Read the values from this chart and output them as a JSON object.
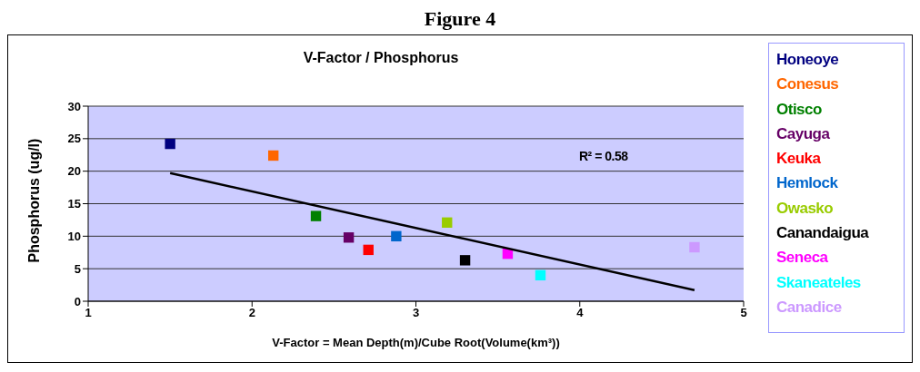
{
  "chart_data": {
    "type": "scatter",
    "title": "Figure 4",
    "subtitle": "V-Factor / Phosphorus",
    "xlabel": "V-Factor = Mean Depth(m)/Cube Root(Volume(km³))",
    "ylabel": "Phosphorus (ug/l)",
    "annotations": [
      "R² = 0.58"
    ],
    "xlim": [
      1,
      5
    ],
    "xticks": [
      1,
      2,
      3,
      4,
      5
    ],
    "ylim": [
      0,
      30
    ],
    "yticks": [
      0,
      5,
      10,
      15,
      20,
      25,
      30
    ],
    "grid": "y",
    "legend": "right",
    "marker": "square",
    "series": [
      {
        "name": "Honeoye",
        "color": "#000080",
        "x": [
          1.5
        ],
        "values": [
          24.2
        ]
      },
      {
        "name": "Conesus",
        "color": "#ff6600",
        "x": [
          2.13
        ],
        "values": [
          22.4
        ]
      },
      {
        "name": "Otisco",
        "color": "#008000",
        "x": [
          2.39
        ],
        "values": [
          13.1
        ]
      },
      {
        "name": "Cayuga",
        "color": "#660066",
        "x": [
          2.59
        ],
        "values": [
          9.8
        ]
      },
      {
        "name": "Keuka",
        "color": "#ff0000",
        "x": [
          2.71
        ],
        "values": [
          7.9
        ]
      },
      {
        "name": "Hemlock",
        "color": "#0066cc",
        "x": [
          2.88
        ],
        "values": [
          10.0
        ]
      },
      {
        "name": "Owasko",
        "color": "#99cc00",
        "x": [
          3.19
        ],
        "values": [
          12.1
        ]
      },
      {
        "name": "Canandaigua",
        "color": "#000000",
        "x": [
          3.3
        ],
        "values": [
          6.3
        ]
      },
      {
        "name": "Seneca",
        "color": "#ff00ff",
        "x": [
          3.56
        ],
        "values": [
          7.3
        ]
      },
      {
        "name": "Skaneateles",
        "color": "#00ffff",
        "x": [
          3.76
        ],
        "values": [
          4.0
        ]
      },
      {
        "name": "Canadice",
        "color": "#cc99ff",
        "x": [
          4.7
        ],
        "values": [
          8.3
        ]
      },
      {
        "type": "line",
        "marker": "none",
        "color": "#000000",
        "x": [
          1.5,
          4.7
        ],
        "values": [
          19.7,
          1.7
        ]
      }
    ]
  }
}
